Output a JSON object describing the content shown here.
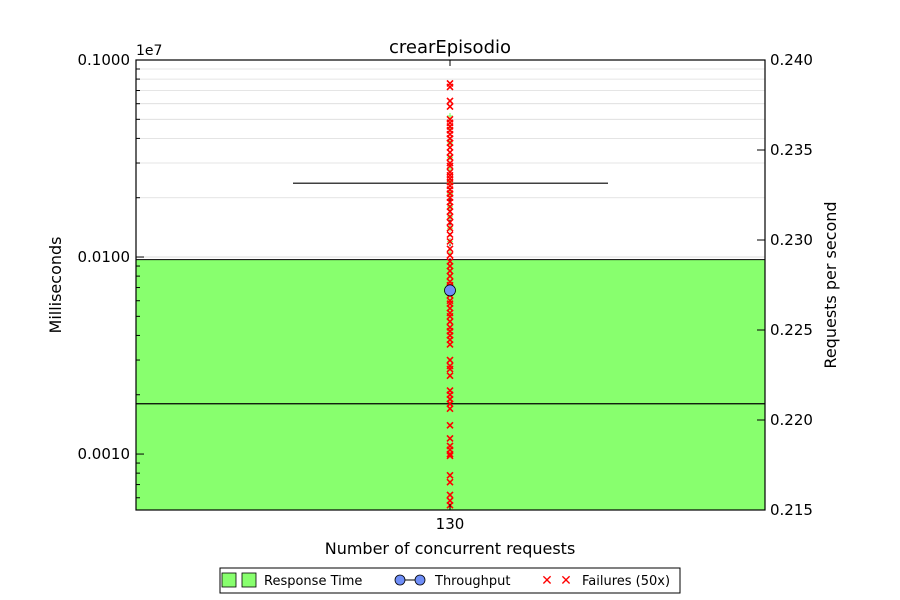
{
  "chart_data": {
    "type": "box",
    "title": "crearEpisodio",
    "xlabel": "Number of concurrent requests",
    "ylabel_left": "Milliseconds",
    "ylabel_right": "Requests per second",
    "offset_label": "1e7",
    "categories": [
      "130"
    ],
    "x": [
      130
    ],
    "left_axis": {
      "scale": "log",
      "ylim": [
        0.00052,
        0.1
      ],
      "ticks": [
        0.1,
        0.01,
        0.001
      ],
      "tick_labels": [
        "0.1000",
        "0.0100",
        "0.0010"
      ]
    },
    "right_axis": {
      "scale": "linear",
      "ylim": [
        0.215,
        0.24
      ],
      "ticks": [
        0.24,
        0.235,
        0.23,
        0.225,
        0.22,
        0.215
      ],
      "tick_labels": [
        "0.240",
        "0.235",
        "0.230",
        "0.225",
        "0.220",
        "0.215"
      ]
    },
    "grid": true,
    "legend_position": "bottom-center",
    "series": [
      {
        "name": "Response Time",
        "kind": "box",
        "color": "#88ff6e",
        "box_low": 0.00052,
        "box_high": 0.0097,
        "median": 0.0018,
        "whisker_high": 0.0237,
        "whisker_low": 0.00052,
        "points": [
          0.052,
          0.045,
          0.038,
          0.032,
          0.028,
          0.024,
          0.021,
          0.018,
          0.016,
          0.014,
          0.012,
          0.0105
        ]
      },
      {
        "name": "Throughput",
        "kind": "line",
        "color": "#6f8ef7",
        "values": [
          0.2272
        ]
      },
      {
        "name": "Failures (50x)",
        "kind": "scatter",
        "color": "#ff0000",
        "values": [
          0.076,
          0.073,
          0.062,
          0.058,
          0.05,
          0.048,
          0.046,
          0.044,
          0.042,
          0.04,
          0.038,
          0.036,
          0.034,
          0.032,
          0.03,
          0.029,
          0.027,
          0.026,
          0.025,
          0.024,
          0.023,
          0.022,
          0.021,
          0.02,
          0.019,
          0.018,
          0.017,
          0.016,
          0.015,
          0.014,
          0.013,
          0.012,
          0.011,
          0.0102,
          0.0095,
          0.009,
          0.0085,
          0.008,
          0.0075,
          0.0072,
          0.007,
          0.0068,
          0.0066,
          0.0064,
          0.006,
          0.0058,
          0.0055,
          0.0052,
          0.005,
          0.0047,
          0.0044,
          0.0042,
          0.004,
          0.0038,
          0.0036,
          0.003,
          0.0028,
          0.0027,
          0.0025,
          0.0021,
          0.002,
          0.0019,
          0.0018,
          0.0017,
          0.0014,
          0.0012,
          0.0011,
          0.00105,
          0.001,
          0.00098,
          0.00078,
          0.00072,
          0.00062,
          0.00058,
          0.00055
        ]
      }
    ],
    "legend": [
      "Response Time",
      "Throughput",
      "Failures (50x)"
    ]
  }
}
